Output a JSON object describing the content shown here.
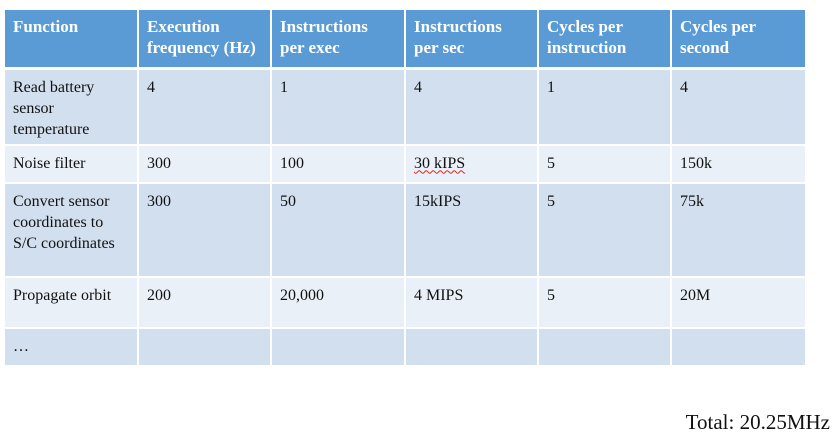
{
  "table": {
    "headers": [
      "Function",
      "Execution frequency (Hz)",
      "Instructions per exec",
      "Instructions per sec",
      "Cycles per instruction",
      "Cycles per second"
    ],
    "rows": [
      [
        "Read battery sensor temperature",
        "4",
        "1",
        "4",
        "1",
        "4"
      ],
      [
        "Noise filter",
        "300",
        "100",
        "30 kIPS",
        "5",
        "150k"
      ],
      [
        "Convert sensor coordinates to S/C coordinates",
        "300",
        "50",
        "15kIPS",
        "5",
        "75k"
      ],
      [
        "Propagate orbit",
        "200",
        "20,000",
        "4 MIPS",
        "5",
        "20M"
      ],
      [
        "…",
        "",
        "",
        "",
        "",
        ""
      ]
    ]
  },
  "total": "Total: 20.25MHz"
}
